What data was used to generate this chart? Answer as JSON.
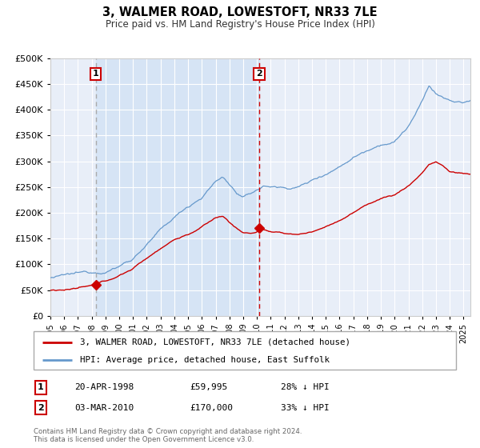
{
  "title": "3, WALMER ROAD, LOWESTOFT, NR33 7LE",
  "subtitle": "Price paid vs. HM Land Registry's House Price Index (HPI)",
  "background_color": "#ffffff",
  "plot_background_color": "#e8eef8",
  "grid_color": "#ffffff",
  "sale1_date": 1998.29,
  "sale1_price": 59995,
  "sale1_label": "1",
  "sale1_text": "20-APR-1998",
  "sale1_amount": "£59,995",
  "sale1_hpi": "28% ↓ HPI",
  "sale2_date": 2010.17,
  "sale2_price": 170000,
  "sale2_label": "2",
  "sale2_text": "03-MAR-2010",
  "sale2_amount": "£170,000",
  "sale2_hpi": "33% ↓ HPI",
  "legend_line1": "3, WALMER ROAD, LOWESTOFT, NR33 7LE (detached house)",
  "legend_line2": "HPI: Average price, detached house, East Suffolk",
  "footer_line1": "Contains HM Land Registry data © Crown copyright and database right 2024.",
  "footer_line2": "This data is licensed under the Open Government Licence v3.0.",
  "property_color": "#cc0000",
  "hpi_color": "#6699cc",
  "vline1_color": "#aaaaaa",
  "vline2_color": "#cc0000",
  "shade_color": "#d6e4f5",
  "ylim_max": 500000,
  "ylim_min": 0,
  "xlim_min": 1995.0,
  "xlim_max": 2025.5
}
